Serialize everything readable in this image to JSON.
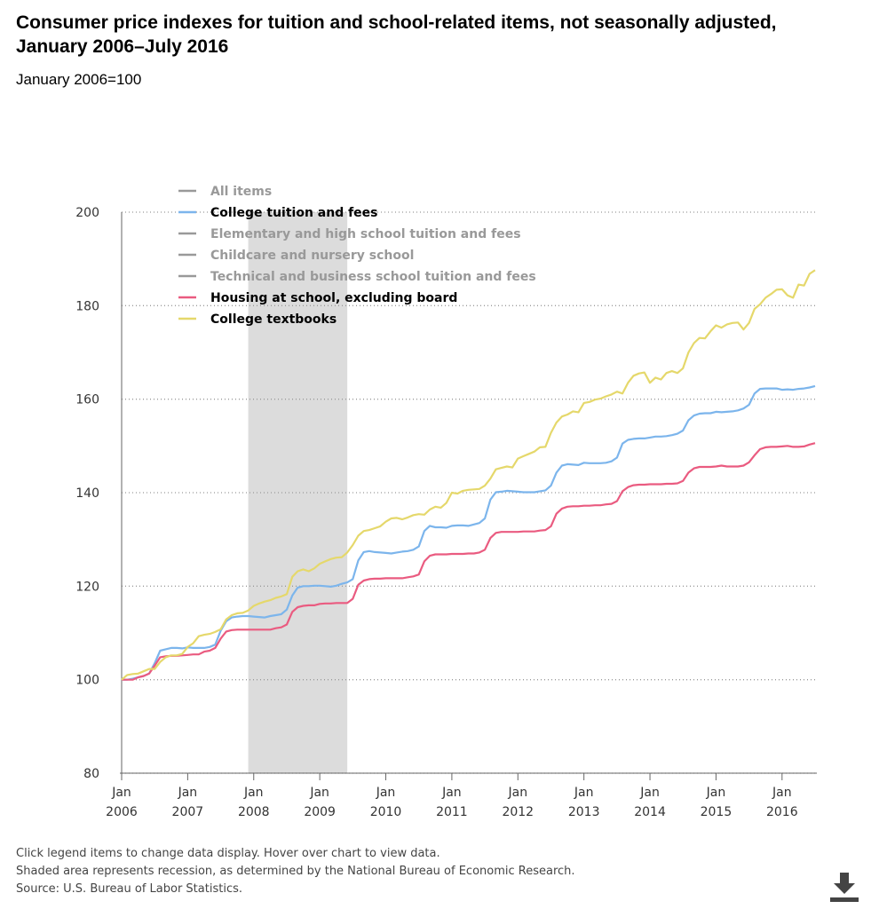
{
  "chart_data": {
    "type": "line",
    "title": "Consumer price indexes for tuition and school-related items, not seasonally adjusted, January 2006–July 2016",
    "subtitle": "January 2006=100",
    "x": [
      "2006-01",
      "2006-02",
      "2006-03",
      "2006-04",
      "2006-05",
      "2006-06",
      "2006-07",
      "2006-08",
      "2006-09",
      "2006-10",
      "2006-11",
      "2006-12",
      "2007-01",
      "2007-02",
      "2007-03",
      "2007-04",
      "2007-05",
      "2007-06",
      "2007-07",
      "2007-08",
      "2007-09",
      "2007-10",
      "2007-11",
      "2007-12",
      "2008-01",
      "2008-02",
      "2008-03",
      "2008-04",
      "2008-05",
      "2008-06",
      "2008-07",
      "2008-08",
      "2008-09",
      "2008-10",
      "2008-11",
      "2008-12",
      "2009-01",
      "2009-02",
      "2009-03",
      "2009-04",
      "2009-05",
      "2009-06",
      "2009-07",
      "2009-08",
      "2009-09",
      "2009-10",
      "2009-11",
      "2009-12",
      "2010-01",
      "2010-02",
      "2010-03",
      "2010-04",
      "2010-05",
      "2010-06",
      "2010-07",
      "2010-08",
      "2010-09",
      "2010-10",
      "2010-11",
      "2010-12",
      "2011-01",
      "2011-02",
      "2011-03",
      "2011-04",
      "2011-05",
      "2011-06",
      "2011-07",
      "2011-08",
      "2011-09",
      "2011-10",
      "2011-11",
      "2011-12",
      "2012-01",
      "2012-02",
      "2012-03",
      "2012-04",
      "2012-05",
      "2012-06",
      "2012-07",
      "2012-08",
      "2012-09",
      "2012-10",
      "2012-11",
      "2012-12",
      "2013-01",
      "2013-02",
      "2013-03",
      "2013-04",
      "2013-05",
      "2013-06",
      "2013-07",
      "2013-08",
      "2013-09",
      "2013-10",
      "2013-11",
      "2013-12",
      "2014-01",
      "2014-02",
      "2014-03",
      "2014-04",
      "2014-05",
      "2014-06",
      "2014-07",
      "2014-08",
      "2014-09",
      "2014-10",
      "2014-11",
      "2014-12",
      "2015-01",
      "2015-02",
      "2015-03",
      "2015-04",
      "2015-05",
      "2015-06",
      "2015-07",
      "2015-08",
      "2015-09",
      "2015-10",
      "2015-11",
      "2015-12",
      "2016-01",
      "2016-02",
      "2016-03",
      "2016-04",
      "2016-05",
      "2016-06",
      "2016-07"
    ],
    "series": [
      {
        "name": "All items",
        "visible": false
      },
      {
        "name": "College tuition and fees",
        "color": "#7cb5ec",
        "visible": true,
        "values": [
          100,
          100,
          100.2,
          100.5,
          100.8,
          101.3,
          103.5,
          106.2,
          106.5,
          106.8,
          106.8,
          106.7,
          106.9,
          106.8,
          106.8,
          106.8,
          107,
          107.5,
          110.5,
          112.5,
          113.3,
          113.5,
          113.6,
          113.6,
          113.5,
          113.4,
          113.3,
          113.6,
          113.8,
          114,
          115,
          118,
          119.7,
          120,
          120,
          120.1,
          120.1,
          120,
          119.9,
          120.1,
          120.5,
          120.8,
          121.5,
          125.5,
          127.3,
          127.5,
          127.3,
          127.2,
          127.1,
          127,
          127.2,
          127.4,
          127.5,
          127.8,
          128.5,
          131.8,
          132.9,
          132.6,
          132.6,
          132.5,
          132.9,
          133,
          133,
          132.9,
          133.2,
          133.5,
          134.5,
          138.5,
          140.1,
          140.2,
          140.4,
          140.3,
          140.2,
          140.1,
          140.1,
          140.1,
          140.3,
          140.5,
          141.5,
          144.3,
          145.8,
          146.1,
          146,
          145.9,
          146.4,
          146.3,
          146.3,
          146.3,
          146.4,
          146.7,
          147.5,
          150.5,
          151.3,
          151.5,
          151.6,
          151.6,
          151.8,
          152,
          152,
          152.1,
          152.3,
          152.6,
          153.3,
          155.5,
          156.5,
          156.9,
          157,
          157,
          157.3,
          157.2,
          157.3,
          157.4,
          157.6,
          158,
          158.8,
          161.2,
          162.2,
          162.3,
          162.3,
          162.3,
          162,
          162.1,
          162,
          162.2,
          162.3,
          162.5,
          162.8
        ]
      },
      {
        "name": "Elementary and high school tuition and fees",
        "visible": false
      },
      {
        "name": "Childcare and nursery school",
        "visible": false
      },
      {
        "name": "Technical and business school tuition and fees",
        "visible": false
      },
      {
        "name": "Housing at school, excluding board",
        "color": "#ea5b80",
        "visible": true,
        "values": [
          100,
          100,
          100,
          100.5,
          100.8,
          101.3,
          103,
          104.8,
          105,
          105.1,
          105.1,
          105.2,
          105.3,
          105.4,
          105.4,
          106,
          106.2,
          106.8,
          108.8,
          110.3,
          110.6,
          110.7,
          110.7,
          110.7,
          110.7,
          110.7,
          110.7,
          110.7,
          111,
          111.2,
          111.8,
          114.5,
          115.5,
          115.8,
          115.9,
          115.9,
          116.2,
          116.3,
          116.3,
          116.4,
          116.4,
          116.4,
          117.3,
          120.3,
          121.2,
          121.5,
          121.6,
          121.6,
          121.7,
          121.7,
          121.7,
          121.7,
          121.9,
          122.1,
          122.5,
          125.3,
          126.5,
          126.8,
          126.8,
          126.8,
          126.9,
          126.9,
          126.9,
          127,
          127,
          127.2,
          127.8,
          130.3,
          131.4,
          131.6,
          131.6,
          131.6,
          131.6,
          131.7,
          131.7,
          131.7,
          131.9,
          132,
          132.8,
          135.5,
          136.6,
          137,
          137.1,
          137.1,
          137.2,
          137.2,
          137.3,
          137.3,
          137.5,
          137.6,
          138.2,
          140.3,
          141.2,
          141.6,
          141.7,
          141.7,
          141.8,
          141.8,
          141.8,
          141.9,
          141.9,
          142,
          142.5,
          144.3,
          145.2,
          145.5,
          145.5,
          145.5,
          145.6,
          145.8,
          145.6,
          145.6,
          145.6,
          145.8,
          146.5,
          148,
          149.3,
          149.7,
          149.8,
          149.8,
          149.9,
          150,
          149.8,
          149.8,
          149.9,
          150.3,
          150.6
        ]
      },
      {
        "name": "College textbooks",
        "color": "#e5d86b",
        "visible": true,
        "values": [
          100,
          101,
          101.2,
          101.3,
          101.8,
          102.3,
          102.3,
          103.8,
          104.8,
          105.2,
          105.2,
          105.5,
          107,
          107.8,
          109.3,
          109.6,
          109.8,
          110.2,
          110.8,
          112.9,
          113.8,
          114.2,
          114.3,
          114.8,
          115.8,
          116.3,
          116.7,
          117,
          117.5,
          117.8,
          118.3,
          122,
          123.2,
          123.6,
          123.2,
          123.8,
          124.8,
          125.3,
          125.8,
          126.1,
          126.2,
          127.2,
          128.8,
          130.8,
          131.8,
          132,
          132.4,
          132.8,
          133.8,
          134.5,
          134.6,
          134.3,
          134.7,
          135.2,
          135.4,
          135.3,
          136.4,
          137,
          136.8,
          137.8,
          140,
          139.8,
          140.4,
          140.6,
          140.7,
          140.8,
          141.5,
          143,
          145,
          145.3,
          145.6,
          145.4,
          147.3,
          147.8,
          148.3,
          148.8,
          149.7,
          149.8,
          152.8,
          155,
          156.3,
          156.7,
          157.4,
          157.2,
          159.2,
          159.4,
          159.9,
          160.1,
          160.6,
          161,
          161.6,
          161.2,
          163.5,
          165,
          165.5,
          165.7,
          163.5,
          164.6,
          164.2,
          165.6,
          166,
          165.6,
          166.6,
          170,
          172,
          173.1,
          173,
          174.5,
          175.8,
          175.3,
          176,
          176.3,
          176.4,
          174.9,
          176.3,
          179.3,
          180.3,
          181.7,
          182.5,
          183.4,
          183.5,
          182.2,
          181.7,
          184.5,
          184.3,
          186.8,
          187.6
        ]
      }
    ],
    "xlim": [
      "2006-01",
      "2016-07"
    ],
    "xticks": [
      {
        "value": "2006-01",
        "label": "Jan 2006"
      },
      {
        "value": "2007-01",
        "label": "Jan 2007"
      },
      {
        "value": "2008-01",
        "label": "Jan 2008"
      },
      {
        "value": "2009-01",
        "label": "Jan 2009"
      },
      {
        "value": "2010-01",
        "label": "Jan 2010"
      },
      {
        "value": "2011-01",
        "label": "Jan 2011"
      },
      {
        "value": "2012-01",
        "label": "Jan 2012"
      },
      {
        "value": "2013-01",
        "label": "Jan 2013"
      },
      {
        "value": "2014-01",
        "label": "Jan 2014"
      },
      {
        "value": "2015-01",
        "label": "Jan 2015"
      },
      {
        "value": "2016-01",
        "label": "Jan 2016"
      }
    ],
    "ylim": [
      80,
      200
    ],
    "yticks": [
      80,
      100,
      120,
      140,
      160,
      180,
      200
    ],
    "grid": true,
    "recession": [
      "2007-12",
      "2009-06"
    ]
  },
  "footer": {
    "notes": [
      "Click legend items to change data display. Hover over chart to view data.",
      "Shaded area represents recession, as determined by the National Bureau of Economic Research.",
      "Source: U.S. Bureau of Labor Statistics."
    ]
  }
}
